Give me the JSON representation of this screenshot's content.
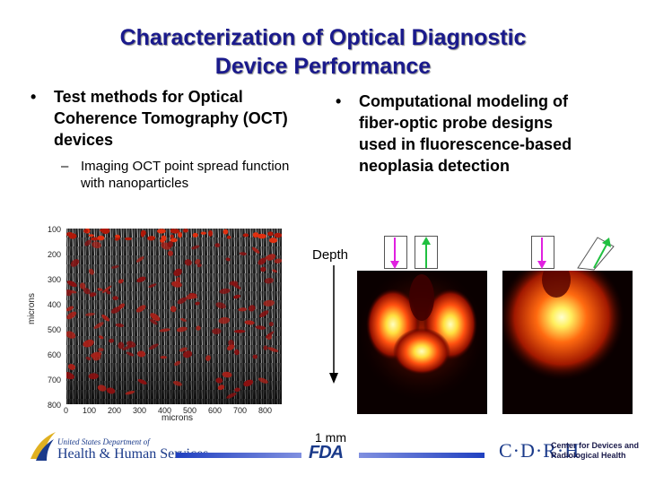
{
  "slide": {
    "title_line1": "Characterization of Optical Diagnostic",
    "title_line2": "Device Performance"
  },
  "left_bullet": {
    "marker": "•",
    "line1": "Test methods for Optical",
    "line2": "Coherence Tomography (OCT)",
    "line3": "devices",
    "sub_marker": "–",
    "sub_line1": "Imaging OCT point spread function",
    "sub_line2": "with nanoparticles"
  },
  "right_bullet": {
    "marker": "•",
    "line1": "Computational modeling of",
    "line2": "fiber-optic probe designs",
    "line3": "used in fluorescence-based",
    "line4": "neoplasia detection"
  },
  "oct_plot": {
    "y_ticks": [
      "100",
      "200",
      "300",
      "400",
      "500",
      "600",
      "700",
      "800"
    ],
    "x_ticks": [
      "0",
      "100",
      "200",
      "300",
      "400",
      "500",
      "600",
      "700",
      "800"
    ],
    "y_label": "microns",
    "x_label": "microns"
  },
  "depth_label": "Depth",
  "scale_label": "1 mm",
  "colors": {
    "title": "#1a1a8c",
    "probe_in_arrow": "#e020e0",
    "probe_out_arrow": "#20c040",
    "logo_blue": "#1a3a8a"
  },
  "footer": {
    "hhs_line1": "United States Department of",
    "hhs_line2": "Health & Human Services",
    "fda": "FDA",
    "cdrh": "C·D·R·H",
    "cdrh_line1": "Center for Devices and",
    "cdrh_line2": "Radiological Health"
  }
}
